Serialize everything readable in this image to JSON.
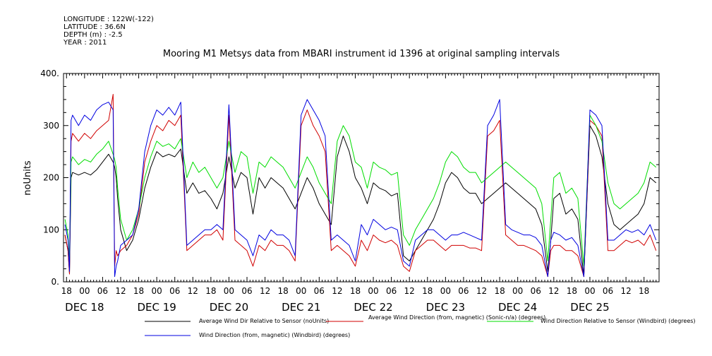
{
  "header": {
    "lines": [
      "LONGITUDE : 122W(-122)",
      "LATITUDE : 36.6N",
      "DEPTH (m) : -2.5",
      "YEAR : 2011"
    ]
  },
  "chart_data": {
    "type": "line",
    "title": "Mooring M1 Metsys data from MBARI instrument id 1396 at original sampling intervals",
    "ylabel": "noUnits",
    "xlabel": "",
    "ylim": [
      0,
      400
    ],
    "yticks": [
      0,
      100,
      200,
      300,
      400
    ],
    "ytick_labels": [
      "0.",
      "100",
      "200",
      "300",
      "400."
    ],
    "xlim_hours": [
      -7,
      191
    ],
    "hour_labels": [
      "18",
      "00",
      "06",
      "12",
      "18"
    ],
    "day_labels": [
      {
        "text": "DEC 18",
        "hour": 0
      },
      {
        "text": "DEC 19",
        "hour": 24
      },
      {
        "text": "DEC 20",
        "hour": 48
      },
      {
        "text": "DEC 21",
        "hour": 72
      },
      {
        "text": "DEC 22",
        "hour": 96
      },
      {
        "text": "DEC 23",
        "hour": 120
      },
      {
        "text": "DEC 24",
        "hour": 144
      },
      {
        "text": "DEC 25",
        "hour": 168
      }
    ],
    "grid": false,
    "series": [
      {
        "name": "Average Wind Dir Relative to Sensor (noUnits)",
        "color": "#000000",
        "x": [
          -6.5,
          -5.5,
          -5,
          -4.5,
          -4,
          -2,
          0,
          2,
          4,
          6,
          8,
          9.5,
          10,
          10.5,
          11,
          12,
          14,
          16,
          18,
          20,
          22,
          24,
          26,
          28,
          30,
          32,
          34,
          36,
          38,
          40,
          42,
          44,
          46,
          48,
          50,
          52,
          54,
          56,
          58,
          60,
          62,
          64,
          66,
          68,
          70,
          72,
          74,
          76,
          78,
          80,
          82,
          84,
          86,
          88,
          90,
          92,
          94,
          96,
          98,
          100,
          102,
          104,
          106,
          108,
          110,
          112,
          114,
          116,
          118,
          120,
          122,
          124,
          126,
          128,
          130,
          132,
          134,
          136,
          138,
          140,
          142,
          144,
          146,
          148,
          150,
          152,
          154,
          155,
          156,
          158,
          160,
          162,
          164,
          166,
          168,
          170,
          172,
          174,
          176,
          178,
          180,
          182,
          184,
          186,
          188,
          190
        ],
        "y": [
          90,
          60,
          15,
          200,
          210,
          205,
          210,
          205,
          215,
          230,
          245,
          230,
          220,
          200,
          160,
          100,
          60,
          80,
          120,
          180,
          220,
          250,
          240,
          245,
          240,
          255,
          170,
          190,
          170,
          175,
          160,
          140,
          170,
          240,
          180,
          210,
          200,
          130,
          200,
          180,
          200,
          190,
          180,
          160,
          140,
          170,
          200,
          180,
          150,
          130,
          110,
          240,
          280,
          250,
          200,
          180,
          150,
          190,
          180,
          175,
          165,
          170,
          50,
          40,
          60,
          80,
          100,
          120,
          150,
          190,
          210,
          200,
          180,
          170,
          170,
          150,
          160,
          170,
          180,
          190,
          180,
          170,
          160,
          150,
          140,
          110,
          20,
          80,
          160,
          170,
          130,
          140,
          120,
          10,
          300,
          280,
          240,
          150,
          110,
          100,
          110,
          120,
          130,
          150,
          200,
          190
        ]
      },
      {
        "name": "Average Wind Direction (from, magnetic) (Sonic-n/a) (degrees)",
        "color": "#d00000",
        "x": [
          -6.5,
          -5.5,
          -5,
          -4.5,
          -4,
          -2,
          0,
          2,
          4,
          6,
          8,
          9.5,
          10,
          10.5,
          11,
          12,
          14,
          16,
          18,
          20,
          22,
          24,
          26,
          28,
          30,
          32,
          34,
          36,
          38,
          40,
          42,
          44,
          46,
          48,
          50,
          52,
          54,
          56,
          58,
          60,
          62,
          64,
          66,
          68,
          70,
          72,
          74,
          76,
          78,
          80,
          82,
          84,
          86,
          88,
          90,
          92,
          94,
          96,
          98,
          100,
          102,
          104,
          106,
          108,
          110,
          112,
          114,
          116,
          118,
          120,
          122,
          124,
          126,
          128,
          130,
          132,
          134,
          136,
          138,
          140,
          142,
          144,
          146,
          148,
          150,
          152,
          154,
          155,
          156,
          158,
          160,
          162,
          164,
          166,
          168,
          170,
          172,
          174,
          176,
          178,
          180,
          182,
          184,
          186,
          188,
          190
        ],
        "y": [
          90,
          60,
          15,
          270,
          285,
          270,
          285,
          275,
          290,
          300,
          310,
          360,
          30,
          60,
          50,
          60,
          70,
          90,
          130,
          230,
          270,
          300,
          290,
          310,
          300,
          320,
          60,
          70,
          80,
          90,
          90,
          100,
          80,
          320,
          80,
          70,
          60,
          30,
          70,
          60,
          80,
          70,
          70,
          60,
          40,
          300,
          330,
          300,
          280,
          250,
          60,
          70,
          60,
          50,
          30,
          80,
          60,
          90,
          80,
          75,
          80,
          70,
          30,
          20,
          60,
          70,
          80,
          80,
          70,
          60,
          70,
          70,
          70,
          65,
          65,
          60,
          280,
          290,
          310,
          90,
          80,
          70,
          70,
          65,
          60,
          50,
          10,
          60,
          70,
          70,
          60,
          60,
          50,
          10,
          310,
          300,
          280,
          60,
          60,
          70,
          80,
          75,
          80,
          70,
          90,
          60
        ]
      },
      {
        "name": "Wind Direction Relative to Sensor (Windbird) (degrees)",
        "color": "#00dd00",
        "x": [
          -6.5,
          -5.5,
          -5,
          -4.5,
          -4,
          -2,
          0,
          2,
          4,
          6,
          8,
          9.5,
          10,
          10.5,
          11,
          12,
          14,
          16,
          18,
          20,
          22,
          24,
          26,
          28,
          30,
          32,
          34,
          36,
          38,
          40,
          42,
          44,
          46,
          48,
          50,
          52,
          54,
          56,
          58,
          60,
          62,
          64,
          66,
          68,
          70,
          72,
          74,
          76,
          78,
          80,
          82,
          84,
          86,
          88,
          90,
          92,
          94,
          96,
          98,
          100,
          102,
          104,
          106,
          108,
          110,
          112,
          114,
          116,
          118,
          120,
          122,
          124,
          126,
          128,
          130,
          132,
          134,
          136,
          138,
          140,
          142,
          144,
          146,
          148,
          150,
          152,
          154,
          155,
          156,
          158,
          160,
          162,
          164,
          166,
          168,
          170,
          172,
          174,
          176,
          178,
          180,
          182,
          184,
          186,
          188,
          190
        ],
        "y": [
          120,
          90,
          40,
          230,
          240,
          225,
          235,
          230,
          245,
          255,
          270,
          245,
          235,
          220,
          180,
          120,
          80,
          100,
          140,
          200,
          240,
          270,
          260,
          265,
          255,
          275,
          200,
          230,
          210,
          220,
          200,
          180,
          200,
          270,
          210,
          250,
          240,
          170,
          230,
          220,
          240,
          230,
          220,
          200,
          180,
          210,
          240,
          220,
          190,
          170,
          150,
          270,
          300,
          280,
          230,
          220,
          180,
          230,
          220,
          215,
          205,
          210,
          90,
          70,
          100,
          120,
          140,
          160,
          190,
          230,
          250,
          240,
          220,
          210,
          210,
          190,
          200,
          210,
          220,
          230,
          220,
          210,
          200,
          190,
          180,
          150,
          40,
          120,
          200,
          210,
          170,
          180,
          160,
          30,
          320,
          300,
          270,
          190,
          150,
          140,
          150,
          160,
          170,
          190,
          230,
          220
        ]
      },
      {
        "name": "Wind Direction (from, magnetic) (Windbird) (degrees)",
        "color": "#0000e0",
        "x": [
          -6.5,
          -5.5,
          -5,
          -4.5,
          -4,
          -2,
          0,
          2,
          4,
          6,
          8,
          9.5,
          10,
          10.5,
          11,
          12,
          14,
          16,
          18,
          20,
          22,
          24,
          26,
          28,
          30,
          32,
          34,
          36,
          38,
          40,
          42,
          44,
          46,
          48,
          50,
          52,
          54,
          56,
          58,
          60,
          62,
          64,
          66,
          68,
          70,
          72,
          74,
          76,
          78,
          80,
          82,
          84,
          86,
          88,
          90,
          92,
          94,
          96,
          98,
          100,
          102,
          104,
          106,
          108,
          110,
          112,
          114,
          116,
          118,
          120,
          122,
          124,
          126,
          128,
          130,
          132,
          134,
          136,
          138,
          140,
          142,
          144,
          146,
          148,
          150,
          152,
          154,
          155,
          156,
          158,
          160,
          162,
          164,
          166,
          168,
          170,
          172,
          174,
          176,
          178,
          180,
          182,
          184,
          186,
          188,
          190
        ],
        "y": [
          110,
          80,
          20,
          310,
          320,
          300,
          320,
          310,
          330,
          340,
          345,
          330,
          10,
          30,
          40,
          70,
          80,
          90,
          140,
          250,
          300,
          330,
          320,
          335,
          320,
          345,
          70,
          80,
          90,
          100,
          100,
          110,
          100,
          340,
          100,
          90,
          80,
          50,
          90,
          80,
          100,
          90,
          90,
          80,
          50,
          320,
          350,
          330,
          310,
          280,
          80,
          90,
          80,
          70,
          40,
          110,
          90,
          120,
          110,
          100,
          105,
          100,
          40,
          30,
          80,
          90,
          100,
          100,
          90,
          80,
          90,
          90,
          95,
          90,
          85,
          80,
          300,
          320,
          350,
          110,
          100,
          95,
          90,
          90,
          85,
          70,
          10,
          80,
          95,
          90,
          80,
          85,
          70,
          10,
          330,
          320,
          300,
          80,
          80,
          90,
          100,
          95,
          100,
          90,
          110,
          80
        ]
      }
    ]
  }
}
